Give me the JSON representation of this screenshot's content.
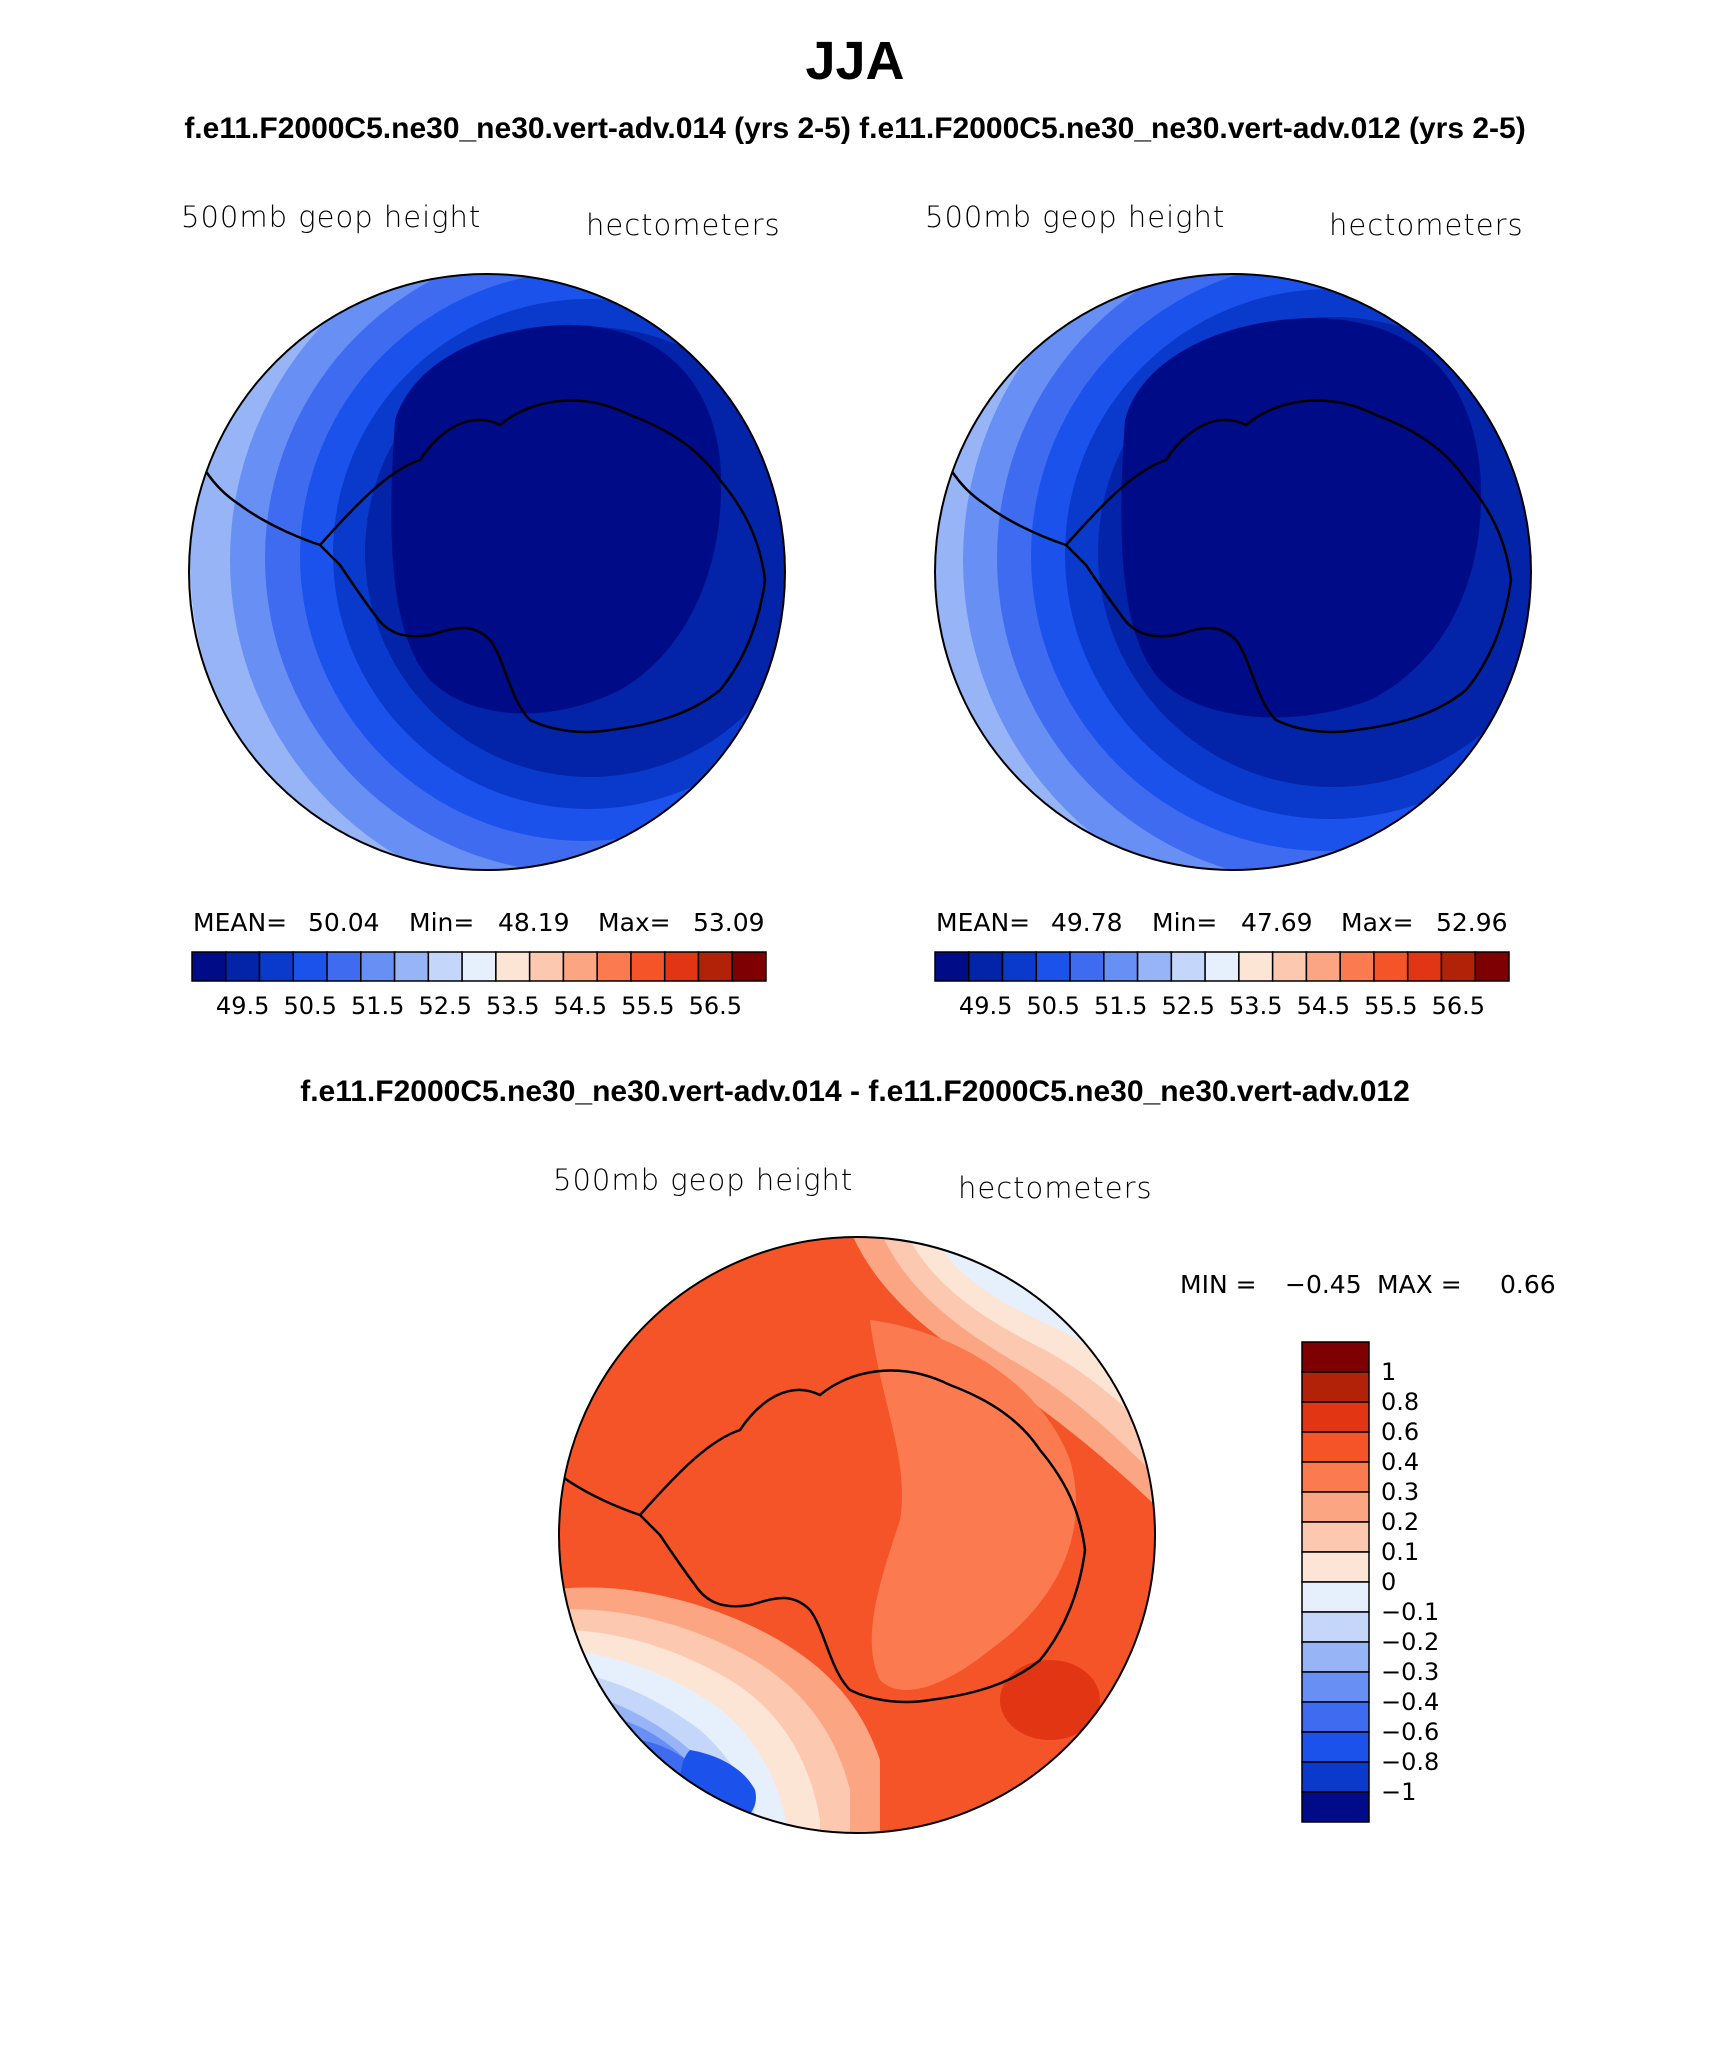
{
  "title": "JJA",
  "subtitle": "f.e11.F2000C5.ne30_ne30.vert-adv.014 (yrs 2-5)  f.e11.F2000C5.ne30_ne30.vert-adv.012 (yrs 2-5)",
  "diff_title": "f.e11.F2000C5.ne30_ne30.vert-adv.014 - f.e11.F2000C5.ne30_ne30.vert-adv.012",
  "colors": {
    "seq": [
      "#000b88",
      "#0323a8",
      "#0a3acc",
      "#1b52ec",
      "#3f6bf0",
      "#6890f4",
      "#97b4f6",
      "#c4d6fa",
      "#e6effc",
      "#fde5d5",
      "#fcc8b0",
      "#fca583",
      "#fb7a4f",
      "#f45428",
      "#e23514",
      "#b22208",
      "#7e0003"
    ],
    "coast": "#000000"
  },
  "panels": [
    {
      "var_label": "500mb  geop  height",
      "units_label": "hectometers",
      "mean_label": "MEAN=",
      "mean": "50.04",
      "min_label": "Min=",
      "min": "48.19",
      "max_label": "Max=",
      "max": "53.09",
      "ticks": [
        "49.5",
        "50.5",
        "51.5",
        "52.5",
        "53.5",
        "54.5",
        "55.5",
        "56.5"
      ]
    },
    {
      "var_label": "500mb  geop  height",
      "units_label": "hectometers",
      "mean_label": "MEAN=",
      "mean": "49.78",
      "min_label": "Min=",
      "min": "47.69",
      "max_label": "Max=",
      "max": "52.96",
      "ticks": [
        "49.5",
        "50.5",
        "51.5",
        "52.5",
        "53.5",
        "54.5",
        "55.5",
        "56.5"
      ]
    }
  ],
  "diff": {
    "var_label": "500mb  geop  height",
    "units_label": "hectometers",
    "min_label": "MIN =",
    "min": "−0.45",
    "max_label": "MAX =",
    "max": "0.66",
    "ticks": [
      "1",
      "0.8",
      "0.6",
      "0.4",
      "0.3",
      "0.2",
      "0.1",
      "0",
      "−0.1",
      "−0.2",
      "−0.3",
      "−0.4",
      "−0.6",
      "−0.8",
      "−1"
    ],
    "colors": [
      "#7e0003",
      "#b22208",
      "#e23514",
      "#f45428",
      "#fb7a4f",
      "#fca583",
      "#fcc8b0",
      "#fde5d5",
      "#e6effc",
      "#c4d6fa",
      "#97b4f6",
      "#6890f4",
      "#3f6bf0",
      "#1b52ec",
      "#0a3acc",
      "#000b88"
    ]
  }
}
